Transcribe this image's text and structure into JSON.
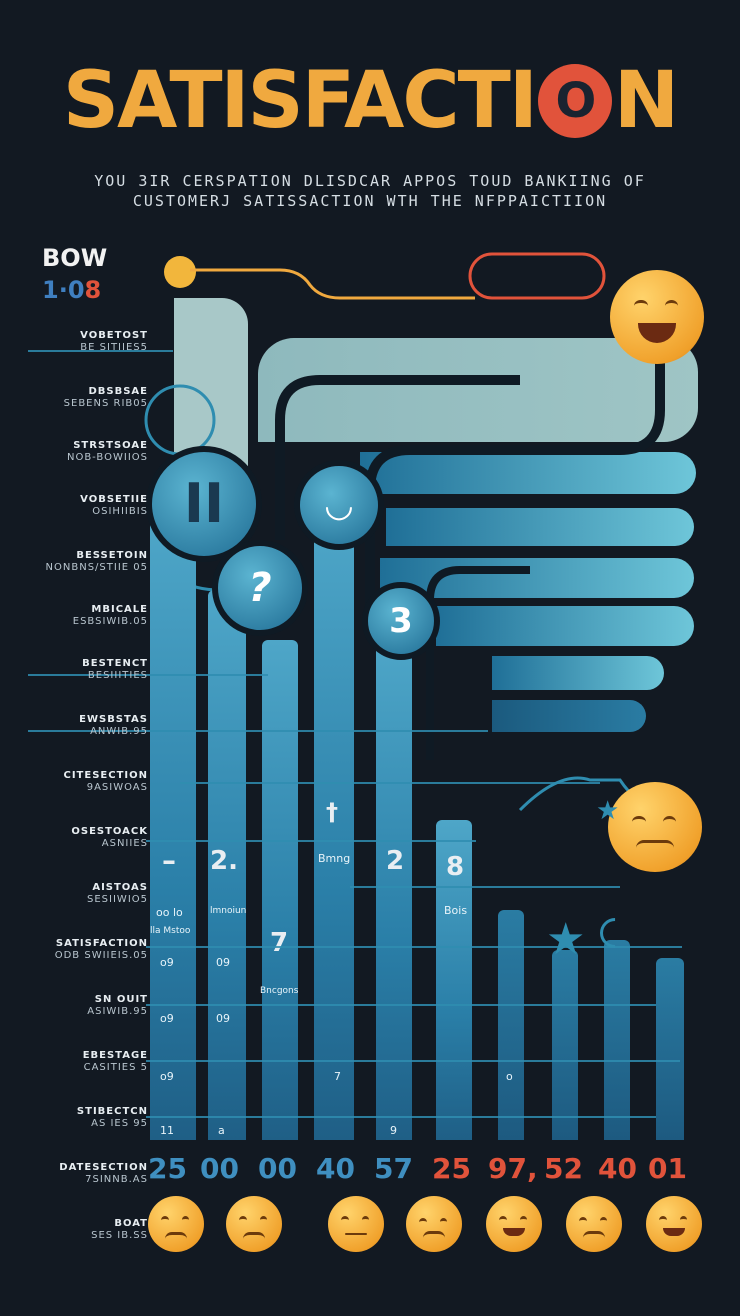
{
  "header": {
    "title_prefix": "SATISFACTI",
    "title_o": "O",
    "title_suffix": "N",
    "subtitle_line1": "YOU 3IR CERSPATION DLISDCAR APPOS TOUD BANKIING OF",
    "subtitle_line2": "CUSTOMERJ SATISSACTION WTH THE NFPPAICTIION"
  },
  "badge": {
    "word": "BOW",
    "num_blue": "1·0",
    "num_red": "8"
  },
  "side_labels": [
    {
      "t": "VOBETOST",
      "s": "BE SITIIES5"
    },
    {
      "t": "DBSBSAE",
      "s": "SEBENS RIB05"
    },
    {
      "t": "STRSTSOAE",
      "s": "NOB-BOWIIOS"
    },
    {
      "t": "VOBSETIIE",
      "s": "OSIHIIBIS"
    },
    {
      "t": "BESSETOIN",
      "s": "NONBNS/STIIE 05"
    },
    {
      "t": "MBICALE",
      "s": "ESBSIWIB.05"
    },
    {
      "t": "BESTENCT",
      "s": "BESIIITIES"
    },
    {
      "t": "EWSBSTAS",
      "s": "ANWIB.95"
    },
    {
      "t": "CITESECTION",
      "s": "9ASIWOAS"
    },
    {
      "t": "OSESTOACK",
      "s": "ASNIIES"
    },
    {
      "t": "AISTOAS",
      "s": "SESIIWIO5"
    },
    {
      "t": "SATISFACTION",
      "s": "ODB SWIIEIS.05"
    },
    {
      "t": "SN OUIT",
      "s": "ASIWIB.95"
    },
    {
      "t": "EBESTAGE",
      "s": "CASITIES 5"
    },
    {
      "t": "STIBECTCN",
      "s": "AS IES 95"
    },
    {
      "t": "DATESECTION",
      "s": "7SINNB.AS"
    },
    {
      "t": "BOAT",
      "s": "SES IB.SS"
    }
  ],
  "circles": [
    {
      "label": "II"
    },
    {
      "label": "?"
    },
    {
      "label": "3"
    }
  ],
  "bar_marks": [
    {
      "label": "–"
    },
    {
      "label": "2."
    },
    {
      "label": "7"
    },
    {
      "label": "†"
    },
    {
      "label": "2"
    },
    {
      "label": "8"
    }
  ],
  "small_texts": {
    "a": "Bmng",
    "b": "Bois",
    "c": "oo lo",
    "d": "lla Mstoo",
    "e": "lmnoiun",
    "f": "Bncgons"
  },
  "column_ticks": [
    "o9",
    "09",
    "o9",
    "09",
    "o9",
    "7",
    "9",
    "11",
    "a",
    "o"
  ],
  "bottom_numbers": [
    {
      "v": "25",
      "color": "#3f8fc0"
    },
    {
      "v": "00",
      "color": "#3f8fc0"
    },
    {
      "v": "00",
      "color": "#3f8fc0"
    },
    {
      "v": "40",
      "color": "#3f8fc0"
    },
    {
      "v": "57",
      "color": "#3f8fc0"
    },
    {
      "v": "25",
      "color": "#e1533b"
    },
    {
      "v": "97,",
      "color": "#e1533b"
    },
    {
      "v": "52",
      "color": "#e1533b"
    },
    {
      "v": "40",
      "color": "#e1533b"
    },
    {
      "v": "01",
      "color": "#e1533b"
    }
  ],
  "colors": {
    "accent_orange": "#f0a93f",
    "accent_red": "#e1533b",
    "teal": "#2f8db0",
    "bg": "#121922"
  }
}
